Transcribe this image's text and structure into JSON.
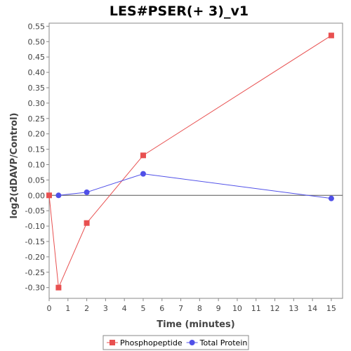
{
  "chart_data": {
    "type": "line",
    "title": "LES#PSER(+ 3)_v1",
    "xlabel": "Time (minutes)",
    "ylabel": "log2(dDAVP/Control)",
    "xlim": [
      0,
      15.6
    ],
    "ylim": [
      -0.335,
      0.56
    ],
    "xticks": [
      0,
      1,
      2,
      3,
      4,
      5,
      6,
      7,
      8,
      9,
      10,
      11,
      12,
      13,
      14,
      15
    ],
    "yticks": [
      -0.3,
      -0.25,
      -0.2,
      -0.15,
      -0.1,
      -0.05,
      0.0,
      0.05,
      0.1,
      0.15,
      0.2,
      0.25,
      0.3,
      0.35,
      0.4,
      0.45,
      0.5,
      0.55
    ],
    "grid": false,
    "zero_line": true,
    "legend_position": "bottom",
    "series": [
      {
        "name": "Phosphopeptide",
        "color": "#e85050",
        "marker": "square",
        "points": [
          [
            0,
            0.0
          ],
          [
            0.5,
            -0.3
          ],
          [
            2,
            -0.09
          ],
          [
            5,
            0.13
          ],
          [
            15,
            0.52
          ]
        ]
      },
      {
        "name": "Total Protein",
        "color": "#5050e8",
        "marker": "circle",
        "points": [
          [
            0.5,
            0.0
          ],
          [
            2,
            0.01
          ],
          [
            5,
            0.07
          ],
          [
            15,
            -0.01
          ]
        ]
      }
    ]
  }
}
